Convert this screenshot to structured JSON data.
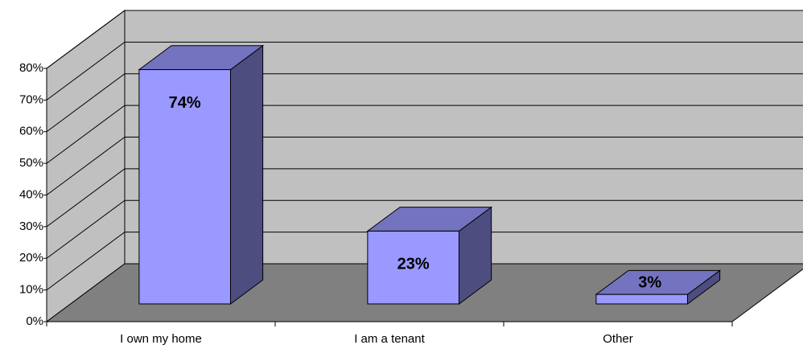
{
  "chart_data": {
    "type": "bar3d",
    "categories": [
      "I own my home",
      "I am a tenant",
      "Other"
    ],
    "values": [
      74,
      23,
      3
    ],
    "value_labels": [
      "74%",
      "23%",
      "3%"
    ],
    "color": "#9999ff",
    "ylim": [
      0,
      80
    ],
    "yticks": [
      {
        "value": 0,
        "label": "0%"
      },
      {
        "value": 10,
        "label": "10%"
      },
      {
        "value": 20,
        "label": "20%"
      },
      {
        "value": 30,
        "label": "30%"
      },
      {
        "value": 40,
        "label": "40%"
      },
      {
        "value": 50,
        "label": "50%"
      },
      {
        "value": 60,
        "label": "60%"
      },
      {
        "value": 70,
        "label": "70%"
      },
      {
        "value": 80,
        "label": "80%"
      }
    ],
    "grid": true
  }
}
